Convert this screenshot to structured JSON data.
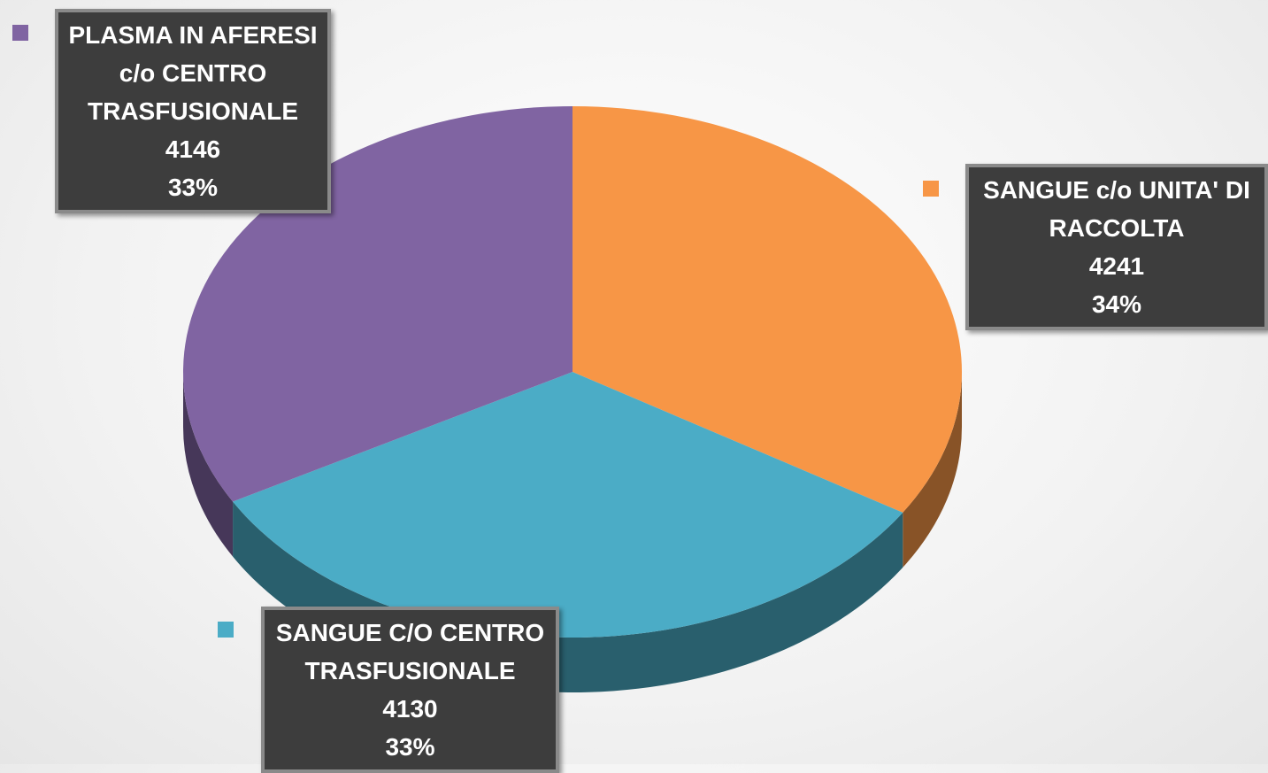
{
  "chart_data": {
    "type": "pie",
    "categories": [
      "SANGUE c/o UNITA' DI\nRACCOLTA",
      "SANGUE C/O CENTRO\nTRASFUSIONALE",
      "PLASMA IN AFERESI\nc/o CENTRO\nTRASFUSIONALE"
    ],
    "values": [
      4241,
      4130,
      4146
    ],
    "percent_labels": [
      "34%",
      "33%",
      "33%"
    ],
    "colors": [
      "#f79646",
      "#4bacc6",
      "#8064a2"
    ]
  }
}
